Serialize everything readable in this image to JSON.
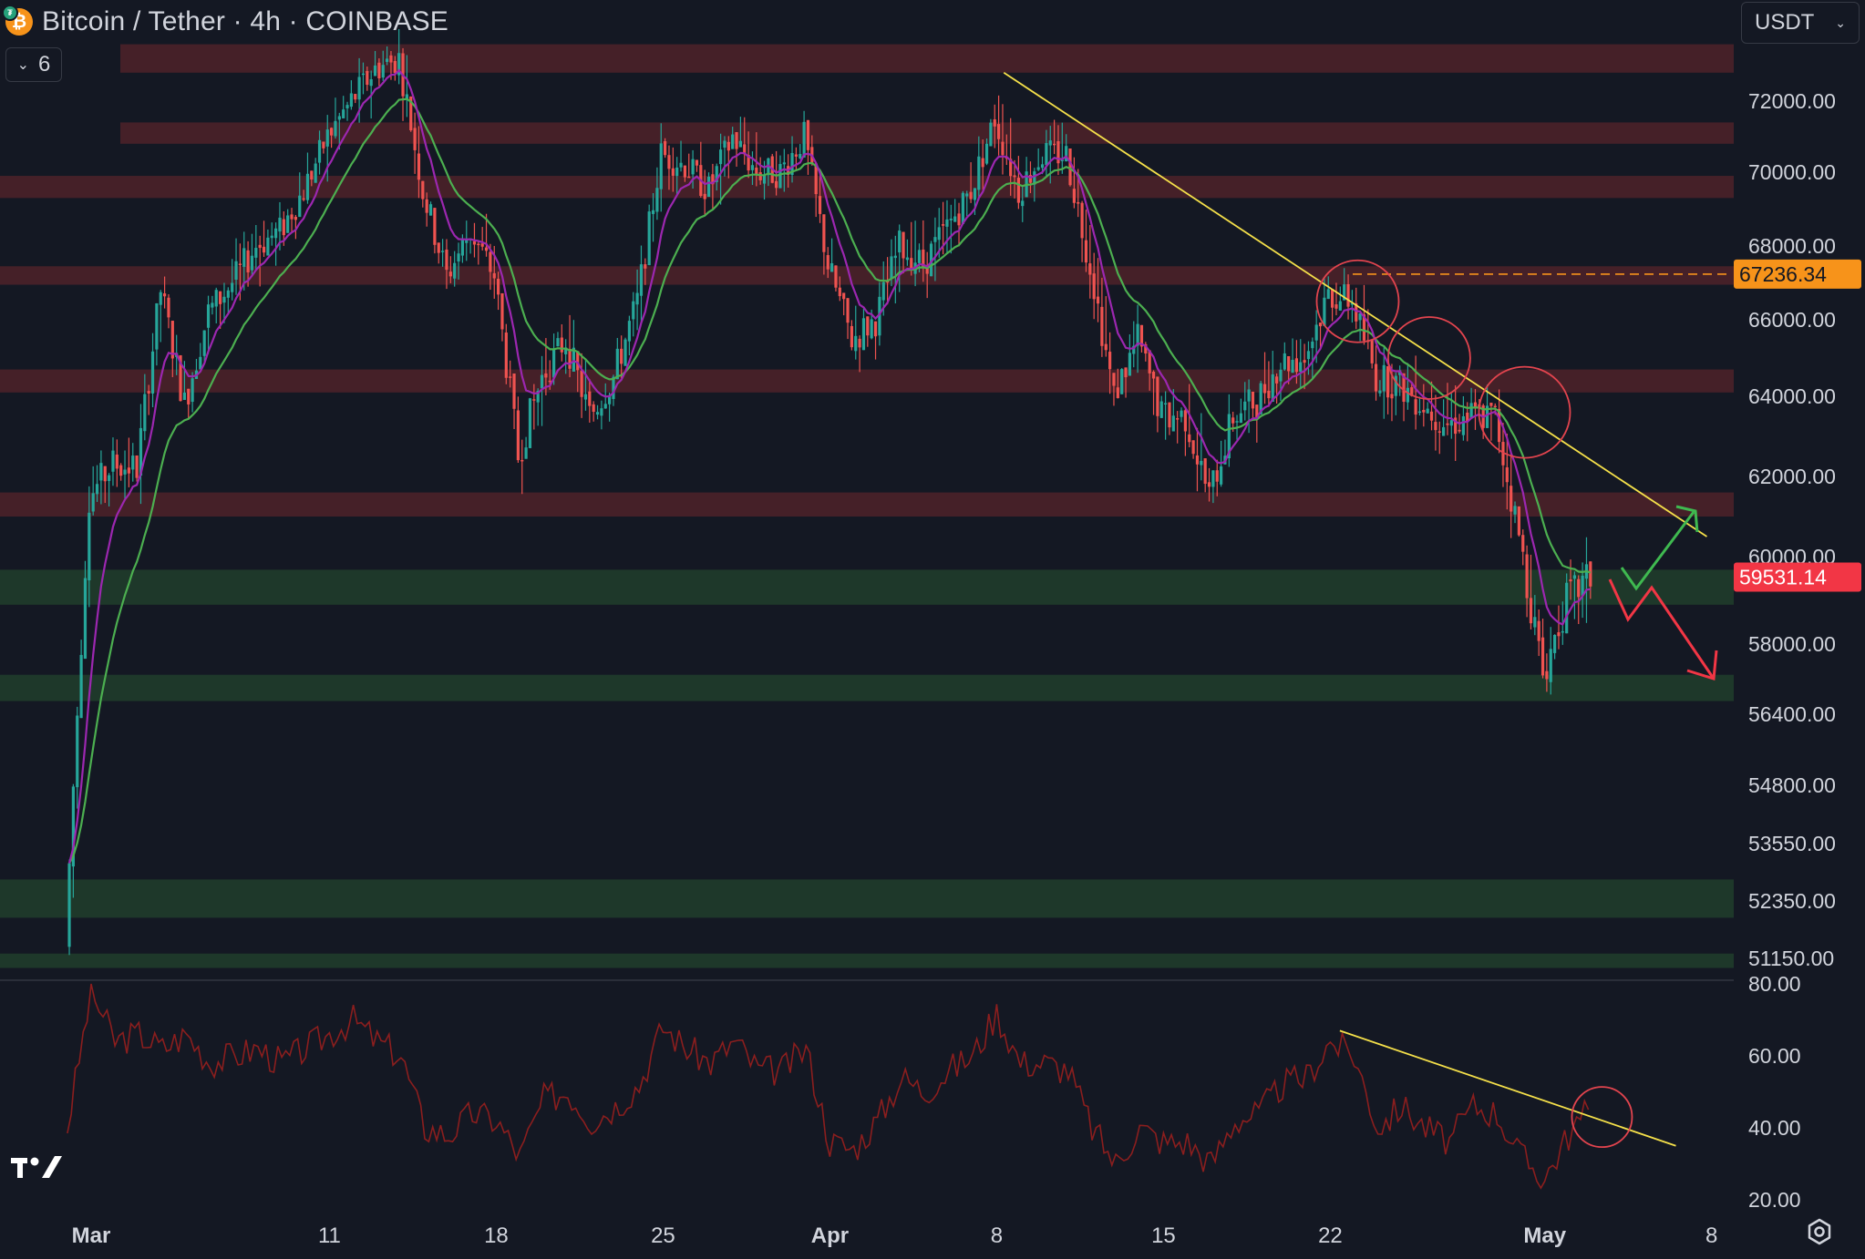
{
  "header": {
    "symbol_title": "Bitcoin / Tether · 4h · COINBASE",
    "logo_icon": "bitcoin-tether-icon"
  },
  "indicators_toggle": {
    "count": "6",
    "icon": "chevron-down-icon"
  },
  "currency": {
    "value": "USDT",
    "icon": "chevron-down-icon"
  },
  "settings": {
    "icon": "gear-icon"
  },
  "brand": {
    "icon": "tradingview-logo"
  },
  "colors": {
    "background": "#141823",
    "up_candle": "#26a69a",
    "down_candle": "#ef5350",
    "resistance_zone": "#4a2229",
    "support_zone": "#1f3a2b",
    "trendline": "#f5e04a",
    "ema_fast": "#9c27b0",
    "ema_slow": "#4caf50",
    "rsi_line": "#8b1e1e",
    "level_orange": "#f7931a",
    "price_tag_red": "#f23645"
  },
  "chart_data": [
    {
      "type": "candlestick",
      "title": "Bitcoin / Tether · 4h · COINBASE",
      "x_ticks": [
        "Mar",
        "11",
        "18",
        "25",
        "Apr",
        "8",
        "15",
        "22",
        "May",
        "8"
      ],
      "y_ticks": [
        "72000.00",
        "70000.00",
        "68000.00",
        "66000.00",
        "64000.00",
        "62000.00",
        "60000.00",
        "58000.00",
        "56400.00",
        "54800.00",
        "53550.00",
        "52350.00",
        "51150.00"
      ],
      "ylim": [
        50800,
        74200
      ],
      "last_price": {
        "value": 59531.14,
        "label": "59531.14"
      },
      "marked_level": {
        "value": 67236.34,
        "label": "67236.34"
      },
      "series": [
        {
          "name": "",
          "close_path": [
            [
              "Feb 28",
              51400
            ],
            [
              "Mar 1",
              61500
            ],
            [
              "Mar 2",
              62300
            ],
            [
              "Mar 3",
              62200
            ],
            [
              "Mar 4",
              66800
            ],
            [
              "Mar 5",
              63800
            ],
            [
              "Mar 6",
              66200
            ],
            [
              "Mar 7",
              67000
            ],
            [
              "Mar 8",
              68000
            ],
            [
              "Mar 9",
              68400
            ],
            [
              "Mar 10",
              69500
            ],
            [
              "Mar 11",
              71000
            ],
            [
              "Mar 12",
              72000
            ],
            [
              "Mar 13",
              72900
            ],
            [
              "Mar 14",
              73200
            ],
            [
              "Mar 15",
              69500
            ],
            [
              "Mar 16",
              67200
            ],
            [
              "Mar 17",
              68400
            ],
            [
              "Mar 18",
              67200
            ],
            [
              "Mar 19",
              62500
            ],
            [
              "Mar 20",
              64500
            ],
            [
              "Mar 21",
              65500
            ],
            [
              "Mar 22",
              63500
            ],
            [
              "Mar 23",
              64500
            ],
            [
              "Mar 24",
              66500
            ],
            [
              "Mar 25",
              70500
            ],
            [
              "Mar 26",
              70200
            ],
            [
              "Mar 27",
              69500
            ],
            [
              "Mar 28",
              71000
            ],
            [
              "Mar 29",
              70000
            ],
            [
              "Mar 30",
              70000
            ],
            [
              "Mar 31",
              71000
            ],
            [
              "Apr 1",
              67500
            ],
            [
              "Apr 2",
              65500
            ],
            [
              "Apr 3",
              66000
            ],
            [
              "Apr 4",
              68000
            ],
            [
              "Apr 5",
              67500
            ],
            [
              "Apr 6",
              68500
            ],
            [
              "Apr 7",
              69500
            ],
            [
              "Apr 8",
              71500
            ],
            [
              "Apr 9",
              69500
            ],
            [
              "Apr 10",
              70500
            ],
            [
              "Apr 11",
              70500
            ],
            [
              "Apr 12",
              67500
            ],
            [
              "Apr 13",
              64000
            ],
            [
              "Apr 14",
              65500
            ],
            [
              "Apr 15",
              63500
            ],
            [
              "Apr 16",
              63500
            ],
            [
              "Apr 17",
              61500
            ],
            [
              "Apr 18",
              63500
            ],
            [
              "Apr 19",
              63900
            ],
            [
              "Apr 20",
              64900
            ],
            [
              "Apr 21",
              65000
            ],
            [
              "Apr 22",
              66700
            ],
            [
              "Apr 23",
              66500
            ],
            [
              "Apr 24",
              64500
            ],
            [
              "Apr 25",
              64300
            ],
            [
              "Apr 26",
              63800
            ],
            [
              "Apr 27",
              63300
            ],
            [
              "Apr 28",
              63500
            ],
            [
              "Apr 29",
              63500
            ],
            [
              "Apr 30",
              60500
            ],
            [
              "May 1",
              57300
            ],
            [
              "May 2",
              59000
            ],
            [
              "May 3",
              59531
            ]
          ]
        }
      ],
      "zones": {
        "resistance": [
          [
            72800,
            73600
          ],
          [
            70800,
            71400
          ],
          [
            69300,
            69900
          ],
          [
            66950,
            67450
          ],
          [
            64100,
            64700
          ],
          [
            61000,
            61600
          ]
        ],
        "support": [
          [
            58900,
            59700
          ],
          [
            56700,
            57300
          ],
          [
            52000,
            52800
          ],
          [
            50950,
            51250
          ]
        ]
      },
      "annotations": {
        "trendline": [
          [
            "Apr 8",
            72800
          ],
          [
            "May 8",
            60500
          ]
        ],
        "circles": [
          [
            "Apr 23",
            66500
          ],
          [
            "Apr 26",
            65000
          ],
          [
            "Apr 30",
            63600
          ]
        ],
        "arrows": [
          "bullish",
          "bearish"
        ]
      }
    },
    {
      "type": "line",
      "title": "",
      "y_ticks": [
        "80.00",
        "60.00",
        "40.00",
        "20.00"
      ],
      "ylim": [
        18,
        82
      ],
      "series": [
        {
          "name": "",
          "values": [
            [
              "Feb 28",
              40
            ],
            [
              "Mar 1",
              78
            ],
            [
              "Mar 2",
              64
            ],
            [
              "Mar 3",
              66
            ],
            [
              "Mar 4",
              62
            ],
            [
              "Mar 5",
              66
            ],
            [
              "Mar 6",
              58
            ],
            [
              "Mar 7",
              60
            ],
            [
              "Mar 8",
              62
            ],
            [
              "Mar 9",
              58
            ],
            [
              "Mar 10",
              62
            ],
            [
              "Mar 11",
              66
            ],
            [
              "Mar 12",
              70
            ],
            [
              "Mar 13",
              64
            ],
            [
              "Mar 14",
              60
            ],
            [
              "Mar 15",
              40
            ],
            [
              "Mar 16",
              38
            ],
            [
              "Mar 17",
              44
            ],
            [
              "Mar 18",
              42
            ],
            [
              "Mar 19",
              32
            ],
            [
              "Mar 20",
              48
            ],
            [
              "Mar 21",
              50
            ],
            [
              "Mar 22",
              42
            ],
            [
              "Mar 23",
              46
            ],
            [
              "Mar 24",
              52
            ],
            [
              "Mar 25",
              68
            ],
            [
              "Mar 26",
              62
            ],
            [
              "Mar 27",
              58
            ],
            [
              "Mar 28",
              64
            ],
            [
              "Mar 29",
              56
            ],
            [
              "Mar 30",
              56
            ],
            [
              "Mar 31",
              62
            ],
            [
              "Apr 1",
              36
            ],
            [
              "Apr 2",
              34
            ],
            [
              "Apr 3",
              42
            ],
            [
              "Apr 4",
              54
            ],
            [
              "Apr 5",
              50
            ],
            [
              "Apr 6",
              56
            ],
            [
              "Apr 7",
              60
            ],
            [
              "Apr 8",
              72
            ],
            [
              "Apr 9",
              58
            ],
            [
              "Apr 10",
              58
            ],
            [
              "Apr 11",
              56
            ],
            [
              "Apr 12",
              40
            ],
            [
              "Apr 13",
              30
            ],
            [
              "Apr 14",
              40
            ],
            [
              "Apr 15",
              36
            ],
            [
              "Apr 16",
              36
            ],
            [
              "Apr 17",
              30
            ],
            [
              "Apr 18",
              42
            ],
            [
              "Apr 19",
              44
            ],
            [
              "Apr 20",
              52
            ],
            [
              "Apr 21",
              54
            ],
            [
              "Apr 22",
              64
            ],
            [
              "Apr 23",
              60
            ],
            [
              "Apr 24",
              40
            ],
            [
              "Apr 25",
              46
            ],
            [
              "Apr 26",
              40
            ],
            [
              "Apr 27",
              36
            ],
            [
              "Apr 28",
              46
            ],
            [
              "Apr 29",
              44
            ],
            [
              "Apr 30",
              32
            ],
            [
              "May 1",
              26
            ],
            [
              "May 2",
              38
            ],
            [
              "May 3",
              46
            ]
          ]
        }
      ],
      "annotations": {
        "trendline": [
          [
            "Apr 22",
            67
          ],
          [
            "May 6",
            35
          ]
        ],
        "circles": [
          [
            "May 3",
            43
          ]
        ]
      }
    }
  ]
}
